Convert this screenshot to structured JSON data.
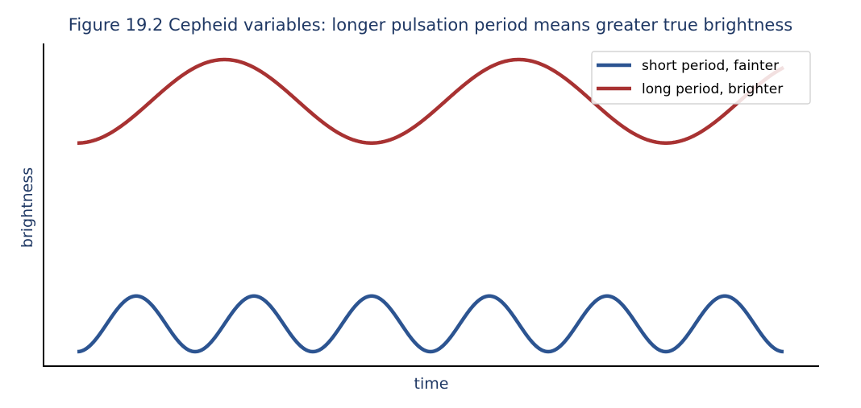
{
  "chart_data": {
    "type": "line",
    "title": "Figure 19.2  Cepheid variables: longer pulsation period means greater true brightness",
    "xlabel": "time",
    "ylabel": "brightness",
    "xlim": [
      0,
      6
    ],
    "ylim": [
      -0.25,
      5.5
    ],
    "x_ticks_shown": false,
    "y_ticks_shown": false,
    "grid": false,
    "legend_position": "top-right",
    "series": [
      {
        "name": "short period, fainter",
        "color": "#2c5491",
        "period": 1.0,
        "mean": 0.5,
        "amplitude": 0.5,
        "x": [
          0,
          0.25,
          0.5,
          0.75,
          1.0,
          1.25,
          1.5,
          1.75,
          2.0,
          2.25,
          2.5,
          2.75,
          3.0,
          3.25,
          3.5,
          3.75,
          4.0,
          4.25,
          4.5,
          4.75,
          5.0,
          5.25,
          5.5,
          5.75,
          6.0
        ],
        "y": [
          0,
          0.5,
          1,
          0.5,
          0,
          0.5,
          1,
          0.5,
          0,
          0.5,
          1,
          0.5,
          0,
          0.5,
          1,
          0.5,
          0,
          0.5,
          1,
          0.5,
          0,
          0.5,
          1,
          0.5,
          0
        ]
      },
      {
        "name": "long period, brighter",
        "color": "#a83232",
        "period": 2.5,
        "mean": 4.5,
        "amplitude": 0.75,
        "x": [
          0,
          0.625,
          1.25,
          1.875,
          2.5,
          3.125,
          3.75,
          4.375,
          5.0,
          5.625,
          6.0
        ],
        "y": [
          3.75,
          4.5,
          5.25,
          4.5,
          3.75,
          4.5,
          5.25,
          4.5,
          3.75,
          4.5,
          5.05
        ]
      }
    ]
  }
}
